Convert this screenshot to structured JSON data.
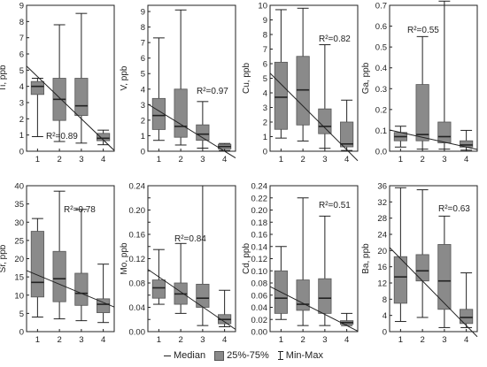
{
  "chart_data": [
    {
      "type": "box",
      "ylabel": "Ti, ppb",
      "ylim": [
        0,
        9
      ],
      "ticks": [
        0,
        1,
        2,
        3,
        4,
        5,
        6,
        7,
        8,
        9
      ],
      "categories": [
        "1",
        "2",
        "3",
        "4"
      ],
      "boxes": [
        {
          "min": 0.9,
          "q1": 3.5,
          "median": 4.0,
          "q3": 4.3,
          "max": 4.5
        },
        {
          "min": 0.6,
          "q1": 1.9,
          "median": 3.2,
          "q3": 4.5,
          "max": 7.8
        },
        {
          "min": 0.5,
          "q1": 2.2,
          "median": 2.8,
          "q3": 4.5,
          "max": 8.5
        },
        {
          "min": 0.4,
          "q1": 0.65,
          "median": 0.8,
          "q3": 1.1,
          "max": 1.3
        }
      ],
      "trend": [
        4.6,
        0.7
      ],
      "r2_label": "R²=0.89"
    },
    {
      "type": "box",
      "ylabel": "V, ppb",
      "ylim": [
        0,
        9.4
      ],
      "ticks": [
        0,
        1,
        2,
        3,
        4,
        5,
        6,
        7,
        8,
        9
      ],
      "categories": [
        "1",
        "2",
        "3",
        "4"
      ],
      "boxes": [
        {
          "min": 0.7,
          "q1": 1.4,
          "median": 2.3,
          "q3": 3.4,
          "max": 7.3
        },
        {
          "min": 0.4,
          "q1": 0.9,
          "median": 1.6,
          "q3": 4.0,
          "max": 9.1
        },
        {
          "min": 0.2,
          "q1": 0.7,
          "median": 1.1,
          "q3": 1.7,
          "max": 3.2
        },
        {
          "min": 0.05,
          "q1": 0.15,
          "median": 0.3,
          "q3": 0.45,
          "max": 0.5
        }
      ],
      "trend": [
        2.6,
        0.0
      ],
      "r2_label": "R²=0.97"
    },
    {
      "type": "box",
      "ylabel": "Cu, ppb",
      "ylim": [
        0,
        10
      ],
      "ticks": [
        0,
        1,
        2,
        3,
        4,
        5,
        6,
        7,
        8,
        9,
        10
      ],
      "categories": [
        "1",
        "2",
        "3",
        "4"
      ],
      "boxes": [
        {
          "min": 0.9,
          "q1": 1.5,
          "median": 3.7,
          "q3": 6.1,
          "max": 9.7
        },
        {
          "min": 0.7,
          "q1": 1.8,
          "median": 4.2,
          "q3": 6.5,
          "max": 9.8
        },
        {
          "min": 0.2,
          "q1": 1.2,
          "median": 1.7,
          "q3": 2.9,
          "max": 7.3
        },
        {
          "min": 0.05,
          "q1": 0.3,
          "median": 0.5,
          "q3": 2.0,
          "max": 3.5
        }
      ],
      "trend": [
        4.6,
        0.1
      ],
      "r2_label": "R²=0.82"
    },
    {
      "type": "box",
      "ylabel": "Ga, ppb",
      "ylim": [
        0,
        0.7
      ],
      "ticks": [
        0,
        0.1,
        0.2,
        0.3,
        0.4,
        0.5,
        0.6,
        0.7
      ],
      "tick_labels": [
        "0.0",
        "0.1",
        "0.2",
        "0.3",
        "0.4",
        "0.5",
        "0.6",
        "0.7"
      ],
      "categories": [
        "1",
        "2",
        "3",
        "4"
      ],
      "boxes": [
        {
          "min": 0.02,
          "q1": 0.05,
          "median": 0.07,
          "q3": 0.09,
          "max": 0.12
        },
        {
          "min": 0.01,
          "q1": 0.05,
          "median": 0.08,
          "q3": 0.32,
          "max": 0.55
        },
        {
          "min": 0.01,
          "q1": 0.04,
          "median": 0.07,
          "q3": 0.14,
          "max": 0.72
        },
        {
          "min": 0.005,
          "q1": 0.02,
          "median": 0.03,
          "q3": 0.05,
          "max": 0.1
        }
      ],
      "trend": [
        0.09,
        0.02
      ],
      "r2_label": "R²=0.55"
    },
    {
      "type": "box",
      "ylabel": "Sr, ppb",
      "ylim": [
        0,
        40
      ],
      "ticks": [
        0,
        5,
        10,
        15,
        20,
        25,
        30,
        35,
        40
      ],
      "categories": [
        "1",
        "2",
        "3",
        "4"
      ],
      "boxes": [
        {
          "min": 4,
          "q1": 9.5,
          "median": 13.5,
          "q3": 27.5,
          "max": 31
        },
        {
          "min": 3.5,
          "q1": 8.2,
          "median": 14.5,
          "q3": 22,
          "max": 38.5
        },
        {
          "min": 3,
          "q1": 7.2,
          "median": 10.5,
          "q3": 16,
          "max": 33.5
        },
        {
          "min": 2.5,
          "q1": 5.2,
          "median": 7.5,
          "q3": 9,
          "max": 18.5
        }
      ],
      "trend": [
        15.5,
        8.0
      ],
      "r2_label": "R²=0.78"
    },
    {
      "type": "box",
      "ylabel": "Mo, ppb",
      "ylim": [
        0,
        0.24
      ],
      "ticks": [
        0,
        0.02,
        0.04,
        0.06,
        0.08,
        0.1,
        0.12,
        0.14,
        0.16,
        0.18,
        0.2,
        0.22,
        0.24
      ],
      "tick_labels": [
        "0.00",
        "",
        "0.04",
        "",
        "0.08",
        "",
        "0.12",
        "",
        "0.16",
        "",
        "0.20",
        "",
        "0.24"
      ],
      "categories": [
        "1",
        "2",
        "3",
        "4"
      ],
      "boxes": [
        {
          "min": 0.045,
          "q1": 0.055,
          "median": 0.072,
          "q3": 0.085,
          "max": 0.135
        },
        {
          "min": 0.03,
          "q1": 0.045,
          "median": 0.062,
          "q3": 0.08,
          "max": 0.145
        },
        {
          "min": 0.01,
          "q1": 0.04,
          "median": 0.055,
          "q3": 0.078,
          "max": 0.24
        },
        {
          "min": 0.008,
          "q1": 0.013,
          "median": 0.02,
          "q3": 0.028,
          "max": 0.068
        }
      ],
      "trend": [
        0.09,
        0.016
      ],
      "r2_label": "R²=0.84"
    },
    {
      "type": "box",
      "ylabel": "Cd, ppb",
      "ylim": [
        0,
        0.24
      ],
      "ticks": [
        0,
        0.02,
        0.04,
        0.06,
        0.08,
        0.1,
        0.12,
        0.14,
        0.16,
        0.18,
        0.2,
        0.22,
        0.24
      ],
      "tick_labels": [
        "0.00",
        "0.02",
        "0.04",
        "0.06",
        "0.08",
        "0.10",
        "0.12",
        "0.14",
        "0.16",
        "0.18",
        "0.20",
        "0.22",
        "0.24"
      ],
      "categories": [
        "1",
        "2",
        "3",
        "4"
      ],
      "boxes": [
        {
          "min": 0.02,
          "q1": 0.03,
          "median": 0.055,
          "q3": 0.1,
          "max": 0.14
        },
        {
          "min": 0.01,
          "q1": 0.035,
          "median": 0.045,
          "q3": 0.085,
          "max": 0.22
        },
        {
          "min": 0.01,
          "q1": 0.03,
          "median": 0.055,
          "q3": 0.087,
          "max": 0.19
        },
        {
          "min": 0.01,
          "q1": 0.012,
          "median": 0.015,
          "q3": 0.018,
          "max": 0.03
        }
      ],
      "trend": [
        0.065,
        0.01
      ],
      "r2_label": "R²=0.51"
    },
    {
      "type": "box",
      "ylabel": "Ba, ppb",
      "ylim": [
        0,
        36
      ],
      "ticks": [
        0,
        4,
        8,
        12,
        16,
        20,
        24,
        28,
        32,
        36
      ],
      "categories": [
        "1",
        "2",
        "3",
        "4"
      ],
      "boxes": [
        {
          "min": 2.5,
          "q1": 7,
          "median": 13.5,
          "q3": 18.5,
          "max": 35.5
        },
        {
          "min": 3.5,
          "q1": 12.5,
          "median": 15,
          "q3": 19,
          "max": 35
        },
        {
          "min": 1,
          "q1": 5.5,
          "median": 12.5,
          "q3": 21.5,
          "max": 28.5
        },
        {
          "min": 1,
          "q1": 2,
          "median": 3.5,
          "q3": 5.5,
          "max": 14.5
        }
      ],
      "trend": [
        18,
        1.5
      ],
      "r2_label": "R²=0.63"
    }
  ],
  "legend": {
    "median": "Median",
    "box": "25%-75%",
    "whisker": "Min-Max"
  }
}
